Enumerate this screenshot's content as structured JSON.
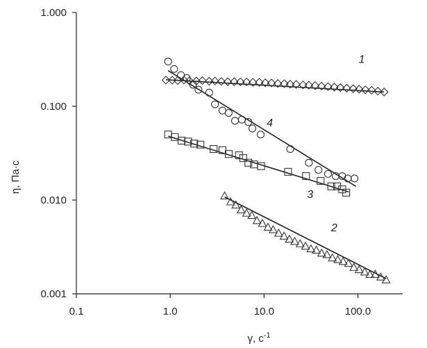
{
  "chart_data": {
    "type": "scatter",
    "title": "",
    "xlabel": "γ, с",
    "xlabel_sup": "-1",
    "ylabel": "η, Па·с",
    "xscale": "log",
    "yscale": "log",
    "xlim": [
      0.1,
      300
    ],
    "ylim": [
      0.001,
      1.0
    ],
    "grid": false,
    "legend": "none",
    "xticks": [
      0.1,
      1.0,
      10.0,
      100.0
    ],
    "xtick_labels": [
      "0.1",
      "1.0",
      "10.0",
      "100.0"
    ],
    "yticks": [
      0.001,
      0.01,
      0.1,
      1.0
    ],
    "ytick_labels": [
      "0.001",
      "0.010",
      "0.100",
      "1.000"
    ],
    "series": [
      {
        "name": "1",
        "marker": "diamond",
        "points": [
          [
            0.9,
            0.19
          ],
          [
            1.05,
            0.19
          ],
          [
            1.2,
            0.188
          ],
          [
            1.4,
            0.19
          ],
          [
            1.6,
            0.187
          ],
          [
            1.9,
            0.186
          ],
          [
            2.2,
            0.188
          ],
          [
            2.6,
            0.185
          ],
          [
            3.0,
            0.186
          ],
          [
            3.5,
            0.184
          ],
          [
            4.1,
            0.183
          ],
          [
            4.8,
            0.183
          ],
          [
            5.6,
            0.182
          ],
          [
            6.5,
            0.182
          ],
          [
            7.6,
            0.18
          ],
          [
            8.9,
            0.18
          ],
          [
            10.3,
            0.178
          ],
          [
            12,
            0.177
          ],
          [
            14,
            0.175
          ],
          [
            16.4,
            0.174
          ],
          [
            19,
            0.172
          ],
          [
            22,
            0.171
          ],
          [
            26,
            0.169
          ],
          [
            30,
            0.168
          ],
          [
            35,
            0.166
          ],
          [
            41,
            0.164
          ],
          [
            48,
            0.162
          ],
          [
            56,
            0.16
          ],
          [
            65,
            0.158
          ],
          [
            76,
            0.156
          ],
          [
            89,
            0.154
          ],
          [
            103,
            0.152
          ],
          [
            120,
            0.15
          ],
          [
            140,
            0.148
          ],
          [
            163,
            0.145
          ],
          [
            190,
            0.142
          ]
        ],
        "fit": [
          [
            0.9,
            0.192
          ],
          [
            190,
            0.142
          ]
        ],
        "label_pos": [
          110,
          0.29
        ]
      },
      {
        "name": "4",
        "marker": "circle",
        "points": [
          [
            0.95,
            0.3
          ],
          [
            1.1,
            0.25
          ],
          [
            1.3,
            0.215
          ],
          [
            1.5,
            0.2
          ],
          [
            1.75,
            0.17
          ],
          [
            2.0,
            0.15
          ],
          [
            2.6,
            0.14
          ],
          [
            3.0,
            0.105
          ],
          [
            3.6,
            0.09
          ],
          [
            4.2,
            0.085
          ],
          [
            4.9,
            0.07
          ],
          [
            5.8,
            0.072
          ],
          [
            6.8,
            0.068
          ],
          [
            7.5,
            0.058
          ],
          [
            9.2,
            0.05
          ],
          [
            19,
            0.035
          ],
          [
            30,
            0.025
          ],
          [
            38,
            0.021
          ],
          [
            48,
            0.019
          ],
          [
            58,
            0.018
          ],
          [
            68,
            0.018
          ],
          [
            78,
            0.017
          ],
          [
            92,
            0.017
          ]
        ],
        "fit": [
          [
            0.95,
            0.24
          ],
          [
            95,
            0.014
          ]
        ],
        "label_pos": [
          11.5,
          0.061
        ]
      },
      {
        "name": "3",
        "marker": "square",
        "points": [
          [
            0.95,
            0.05
          ],
          [
            1.12,
            0.047
          ],
          [
            1.32,
            0.043
          ],
          [
            1.55,
            0.042
          ],
          [
            1.8,
            0.04
          ],
          [
            2.1,
            0.039
          ],
          [
            2.9,
            0.035
          ],
          [
            3.6,
            0.034
          ],
          [
            4.2,
            0.031
          ],
          [
            5.4,
            0.03
          ],
          [
            6.0,
            0.028
          ],
          [
            6.8,
            0.025
          ],
          [
            7.8,
            0.024
          ],
          [
            9.3,
            0.023
          ],
          [
            18,
            0.02
          ],
          [
            28,
            0.018
          ],
          [
            40,
            0.016
          ],
          [
            52,
            0.014
          ],
          [
            60,
            0.014
          ],
          [
            68,
            0.013
          ],
          [
            75,
            0.012
          ]
        ],
        "fit": [
          [
            0.95,
            0.048
          ],
          [
            80,
            0.0122
          ]
        ],
        "label_pos": [
          31,
          0.0105
        ]
      },
      {
        "name": "2",
        "marker": "triangle",
        "points": [
          [
            3.8,
            0.011
          ],
          [
            4.4,
            0.0095
          ],
          [
            5.0,
            0.0088
          ],
          [
            5.7,
            0.0078
          ],
          [
            6.5,
            0.0072
          ],
          [
            7.4,
            0.0068
          ],
          [
            8.4,
            0.006
          ],
          [
            9.6,
            0.0056
          ],
          [
            11,
            0.0051
          ],
          [
            12.5,
            0.0048
          ],
          [
            14.3,
            0.0044
          ],
          [
            16.3,
            0.0041
          ],
          [
            18.6,
            0.0038
          ],
          [
            21.2,
            0.0036
          ],
          [
            24.2,
            0.0034
          ],
          [
            27.6,
            0.0032
          ],
          [
            31.5,
            0.003
          ],
          [
            36,
            0.0029
          ],
          [
            41,
            0.0027
          ],
          [
            46.8,
            0.0026
          ],
          [
            53.4,
            0.0024
          ],
          [
            61,
            0.0023
          ],
          [
            69.5,
            0.0022
          ],
          [
            79.3,
            0.0021
          ],
          [
            90.5,
            0.0019
          ],
          [
            103,
            0.0018
          ],
          [
            118,
            0.0017
          ],
          [
            134,
            0.0016
          ],
          [
            153,
            0.0016
          ],
          [
            175,
            0.0015
          ],
          [
            200,
            0.0014
          ]
        ],
        "fit": [
          [
            3.8,
            0.0108
          ],
          [
            200,
            0.00145
          ]
        ],
        "label_pos": [
          56,
          0.00465
        ]
      }
    ]
  }
}
